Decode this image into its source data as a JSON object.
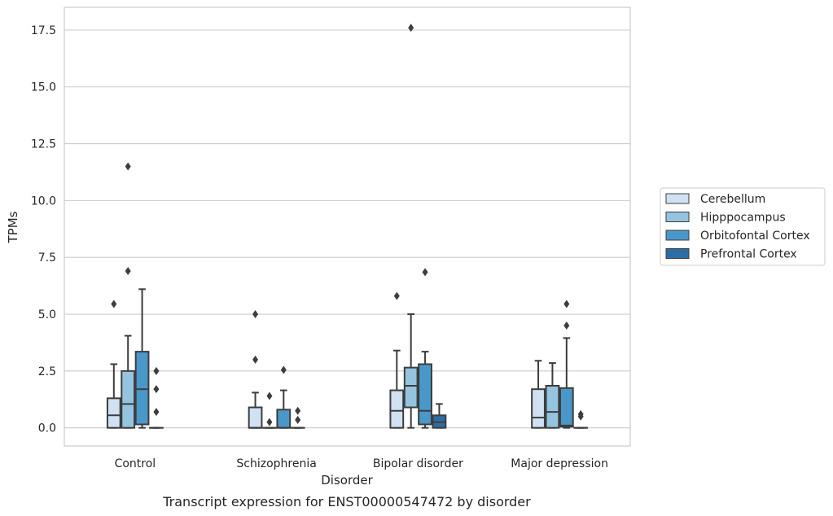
{
  "caption": "Transcript expression for ENST00000547472 by disorder",
  "chart_data": {
    "type": "box",
    "title": "",
    "xlabel": "Disorder",
    "ylabel": "TPMs",
    "ylim": [
      -0.8,
      18.5
    ],
    "yticks": [
      0.0,
      2.5,
      5.0,
      7.5,
      10.0,
      12.5,
      15.0,
      17.5
    ],
    "ytick_labels": [
      "0.0",
      "2.5",
      "5.0",
      "7.5",
      "10.0",
      "12.5",
      "15.0",
      "17.5"
    ],
    "grid": "horizontal",
    "legend_position": "right",
    "categories": [
      "Control",
      "Schizophrenia",
      "Bipolar disorder",
      "Major depression"
    ],
    "series": [
      {
        "name": "Cerebellum",
        "color": "#d0e1f2",
        "boxes": [
          {
            "q1": 0.0,
            "median": 0.55,
            "q3": 1.3,
            "whislo": 0.0,
            "whishi": 2.8,
            "fliers": [
              5.45
            ]
          },
          {
            "q1": 0.0,
            "median": 0.0,
            "q3": 0.9,
            "whislo": 0.0,
            "whishi": 1.55,
            "fliers": [
              3.0,
              5.0
            ]
          },
          {
            "q1": 0.0,
            "median": 0.75,
            "q3": 1.65,
            "whislo": 0.0,
            "whishi": 3.4,
            "fliers": [
              5.8
            ]
          },
          {
            "q1": 0.0,
            "median": 0.45,
            "q3": 1.7,
            "whislo": 0.0,
            "whishi": 2.95,
            "fliers": []
          }
        ]
      },
      {
        "name": "Hipppocampus",
        "color": "#94c4df",
        "boxes": [
          {
            "q1": 0.0,
            "median": 1.05,
            "q3": 2.5,
            "whislo": 0.0,
            "whishi": 4.05,
            "fliers": [
              6.9,
              11.5
            ]
          },
          {
            "q1": 0.0,
            "median": 0.0,
            "q3": 0.0,
            "whislo": 0.0,
            "whishi": 0.0,
            "fliers": [
              0.25,
              1.4
            ]
          },
          {
            "q1": 0.9,
            "median": 1.85,
            "q3": 2.65,
            "whislo": 0.0,
            "whishi": 5.0,
            "fliers": [
              17.6
            ]
          },
          {
            "q1": 0.0,
            "median": 0.7,
            "q3": 1.85,
            "whislo": 0.0,
            "whishi": 2.85,
            "fliers": []
          }
        ]
      },
      {
        "name": "Orbitofontal Cortex",
        "color": "#4a98c9",
        "boxes": [
          {
            "q1": 0.15,
            "median": 1.7,
            "q3": 3.35,
            "whislo": 0.0,
            "whishi": 6.1,
            "fliers": []
          },
          {
            "q1": 0.0,
            "median": 0.0,
            "q3": 0.8,
            "whislo": 0.0,
            "whishi": 1.65,
            "fliers": [
              2.55
            ]
          },
          {
            "q1": 0.15,
            "median": 0.75,
            "q3": 2.8,
            "whislo": 0.0,
            "whishi": 3.35,
            "fliers": [
              6.85
            ]
          },
          {
            "q1": 0.05,
            "median": 0.1,
            "q3": 1.75,
            "whislo": 0.0,
            "whishi": 3.95,
            "fliers": [
              4.5,
              5.45
            ]
          }
        ]
      },
      {
        "name": "Prefrontal Cortex",
        "color": "#2e6da4",
        "boxes": [
          {
            "q1": 0.0,
            "median": 0.0,
            "q3": 0.0,
            "whislo": 0.0,
            "whishi": 0.0,
            "fliers": [
              0.7,
              1.7,
              2.5
            ]
          },
          {
            "q1": 0.0,
            "median": 0.0,
            "q3": 0.0,
            "whislo": 0.0,
            "whishi": 0.0,
            "fliers": [
              0.35,
              0.75
            ]
          },
          {
            "q1": 0.0,
            "median": 0.25,
            "q3": 0.55,
            "whislo": 0.0,
            "whishi": 1.05,
            "fliers": []
          },
          {
            "q1": 0.0,
            "median": 0.0,
            "q3": 0.0,
            "whislo": 0.0,
            "whishi": 0.0,
            "fliers": [
              0.5,
              0.6
            ]
          }
        ]
      }
    ]
  }
}
